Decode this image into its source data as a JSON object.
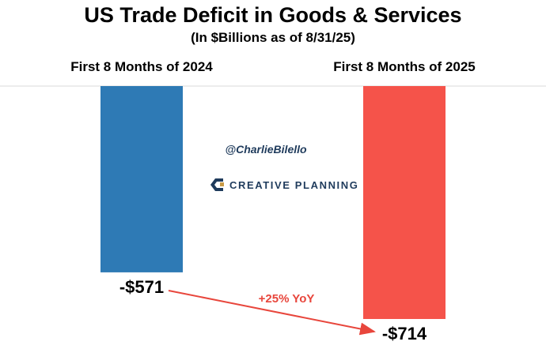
{
  "chart_data": {
    "type": "bar",
    "title": "US Trade Deficit in Goods & Services",
    "subtitle": "(In $Billions as of 8/31/25)",
    "categories": [
      "First 8 Months of 2024",
      "First 8 Months of 2025"
    ],
    "values": [
      -571,
      -714
    ],
    "value_labels": [
      "-$571",
      "-$714"
    ],
    "colors": [
      "#2e7ab5",
      "#f5534a"
    ],
    "ylim": [
      -714,
      0
    ],
    "grid": false,
    "legend": "none",
    "annotation": {
      "text": "+25% YoY",
      "color": "#e8463c"
    }
  },
  "watermark": {
    "handle": "@CharlieBilello",
    "brand": "CREATIVE PLANNING"
  }
}
